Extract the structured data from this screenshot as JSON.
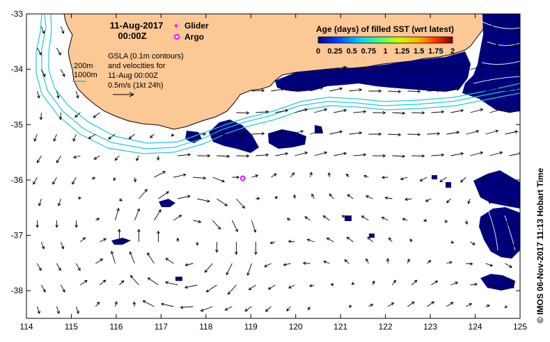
{
  "map": {
    "date_title": "11-Aug-2017",
    "time_title": "00:00Z",
    "legend": {
      "glider": "Glider",
      "argo": "Argo"
    },
    "colors": {
      "land": "#fcc896",
      "sst_filled": "#00007a",
      "ocean": "#ffffff",
      "isobath": "#1ec8dc",
      "contour": "#ffffff",
      "glider": "#ff00ff",
      "argo": "#ff00ff"
    },
    "isobaths": {
      "shallow": "200m",
      "deep": "1000m"
    },
    "gsla_lines": [
      "GSLA (0.1m contours)",
      "and velocities for",
      "11-Aug 00:00Z",
      "0.5m/s (1kt 24h)"
    ],
    "colorbar": {
      "title": "Age (days) of filled SST (wrt latest)",
      "ticks": [
        "0",
        "0.25",
        "0.5",
        "0.75",
        "1",
        "1.25",
        "1.5",
        "1.75",
        "2"
      ]
    },
    "argo_position": {
      "lon": 118.82,
      "lat": -35.97
    },
    "x_ticks": [
      "114",
      "115",
      "116",
      "117",
      "118",
      "119",
      "120",
      "121",
      "122",
      "123",
      "124",
      "125"
    ],
    "y_ticks": [
      "-33",
      "-34",
      "-35",
      "-36",
      "-37",
      "-38"
    ],
    "credit": "© IMOS 06-Nov-2017 11:13 Hobart Time"
  }
}
